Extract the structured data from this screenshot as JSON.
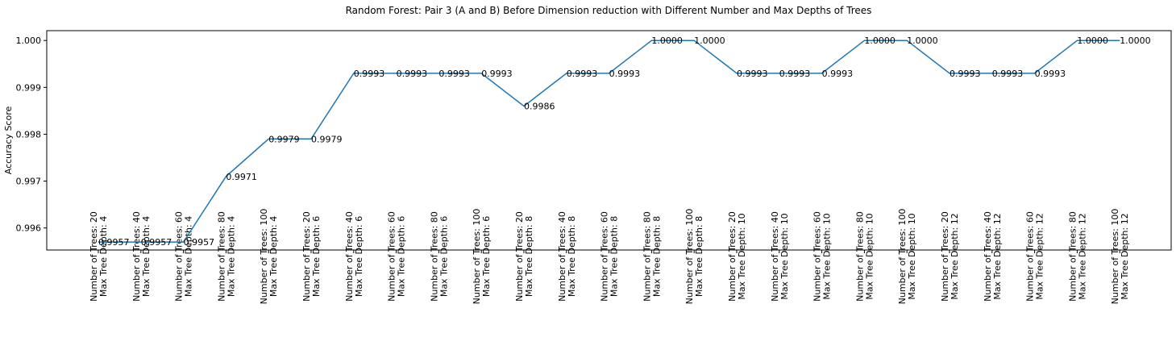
{
  "chart_data": {
    "type": "line",
    "title": "Random Forest: Pair 3 (A and B) Before Dimension reduction with Different Number and Max Depths of Trees",
    "xlabel": "",
    "ylabel": "Accuracy Score",
    "ylim": [
      0.99553,
      1.00021
    ],
    "y_ticks": [
      "0.996",
      "0.997",
      "0.998",
      "0.999",
      "1.000"
    ],
    "y_tick_values": [
      0.996,
      0.997,
      0.998,
      0.999,
      1.0
    ],
    "line_color": "#1f77b4",
    "grid": false,
    "categories": [
      [
        "Number of Trees: 20",
        "Max Tree Depth: 4"
      ],
      [
        "Number of Trees: 40",
        "Max Tree Depth: 4"
      ],
      [
        "Number of Trees: 60",
        "Max Tree Depth: 4"
      ],
      [
        "Number of Trees: 80",
        "Max Tree Depth: 4"
      ],
      [
        "Number of Trees: 100",
        "Max Tree Depth: 4"
      ],
      [
        "Number of Trees: 20",
        "Max Tree Depth: 6"
      ],
      [
        "Number of Trees: 40",
        "Max Tree Depth: 6"
      ],
      [
        "Number of Trees: 60",
        "Max Tree Depth: 6"
      ],
      [
        "Number of Trees: 80",
        "Max Tree Depth: 6"
      ],
      [
        "Number of Trees: 100",
        "Max Tree Depth: 6"
      ],
      [
        "Number of Trees: 20",
        "Max Tree Depth: 8"
      ],
      [
        "Number of Trees: 40",
        "Max Tree Depth: 8"
      ],
      [
        "Number of Trees: 60",
        "Max Tree Depth: 8"
      ],
      [
        "Number of Trees: 80",
        "Max Tree Depth: 8"
      ],
      [
        "Number of Trees: 100",
        "Max Tree Depth: 8"
      ],
      [
        "Number of Trees: 20",
        "Max Tree Depth: 10"
      ],
      [
        "Number of Trees: 40",
        "Max Tree Depth: 10"
      ],
      [
        "Number of Trees: 60",
        "Max Tree Depth: 10"
      ],
      [
        "Number of Trees: 80",
        "Max Tree Depth: 10"
      ],
      [
        "Number of Trees: 100",
        "Max Tree Depth: 10"
      ],
      [
        "Number of Trees: 20",
        "Max Tree Depth: 12"
      ],
      [
        "Number of Trees: 40",
        "Max Tree Depth: 12"
      ],
      [
        "Number of Trees: 60",
        "Max Tree Depth: 12"
      ],
      [
        "Number of Trees: 80",
        "Max Tree Depth: 12"
      ],
      [
        "Number of Trees: 100",
        "Max Tree Depth: 12"
      ]
    ],
    "values": [
      0.9957,
      0.9957,
      0.9957,
      0.9971,
      0.9979,
      0.9979,
      0.9993,
      0.9993,
      0.9993,
      0.9993,
      0.9986,
      0.9993,
      0.9993,
      1.0,
      1.0,
      0.9993,
      0.9993,
      0.9993,
      1.0,
      1.0,
      0.9993,
      0.9993,
      0.9993,
      1.0,
      1.0
    ],
    "point_labels": [
      "0.9957",
      "0.9957",
      "0.9957",
      "0.9971",
      "0.9979",
      "0.9979",
      "0.9993",
      "0.9993",
      "0.9993",
      "0.9993",
      "0.9986",
      "0.9993",
      "0.9993",
      "1.0000",
      "1.0000",
      "0.9993",
      "0.9993",
      "0.9993",
      "1.0000",
      "1.0000",
      "0.9993",
      "0.9993",
      "0.9993",
      "1.0000",
      "1.0000"
    ]
  }
}
